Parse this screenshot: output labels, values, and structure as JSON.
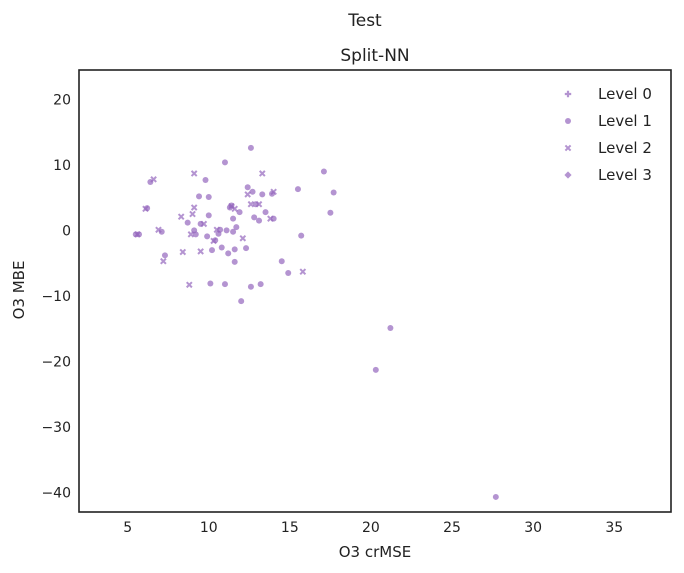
{
  "chart_data": {
    "type": "scatter",
    "suptitle": "Test",
    "title": "Split-NN",
    "xlabel": "O3 crMSE",
    "ylabel": "O3 MBE",
    "xlim": [
      2,
      38.5
    ],
    "ylim": [
      -43,
      24.5
    ],
    "xticks": [
      5,
      10,
      15,
      20,
      25,
      30,
      35
    ],
    "yticks": [
      20,
      10,
      0,
      -10,
      -20,
      -30,
      -40
    ],
    "grid": false,
    "legend_position": "top-right",
    "color": "#9467bd",
    "series": [
      {
        "name": "Level 0",
        "marker": "plus",
        "points": []
      },
      {
        "name": "Level 1",
        "marker": "circle",
        "points": [
          [
            5.5,
            -0.6
          ],
          [
            5.7,
            -0.6
          ],
          [
            6.2,
            3.4
          ],
          [
            6.4,
            7.4
          ],
          [
            7.1,
            -0.2
          ],
          [
            7.3,
            -3.8
          ],
          [
            8.7,
            1.2
          ],
          [
            9.1,
            0.0
          ],
          [
            9.2,
            -0.6
          ],
          [
            9.4,
            5.2
          ],
          [
            9.5,
            1.0
          ],
          [
            9.8,
            7.7
          ],
          [
            9.9,
            -0.9
          ],
          [
            10.0,
            5.1
          ],
          [
            10.0,
            2.3
          ],
          [
            10.1,
            -8.1
          ],
          [
            10.2,
            -3.0
          ],
          [
            10.4,
            -1.5
          ],
          [
            10.6,
            -0.5
          ],
          [
            10.7,
            0.1
          ],
          [
            10.8,
            -2.6
          ],
          [
            11.0,
            10.4
          ],
          [
            11.0,
            -8.2
          ],
          [
            11.1,
            0.0
          ],
          [
            11.2,
            -3.5
          ],
          [
            11.3,
            3.5
          ],
          [
            11.4,
            3.8
          ],
          [
            11.5,
            -0.2
          ],
          [
            11.5,
            1.8
          ],
          [
            11.6,
            -2.9
          ],
          [
            11.6,
            -4.8
          ],
          [
            11.7,
            0.5
          ],
          [
            11.9,
            2.8
          ],
          [
            12.0,
            -10.8
          ],
          [
            12.3,
            -2.7
          ],
          [
            12.4,
            6.6
          ],
          [
            12.6,
            12.6
          ],
          [
            12.6,
            -8.6
          ],
          [
            12.7,
            5.9
          ],
          [
            12.8,
            2.0
          ],
          [
            12.9,
            4.0
          ],
          [
            13.1,
            1.5
          ],
          [
            13.2,
            -8.2
          ],
          [
            13.3,
            5.5
          ],
          [
            13.5,
            2.8
          ],
          [
            13.9,
            5.6
          ],
          [
            14.0,
            1.8
          ],
          [
            14.5,
            -4.7
          ],
          [
            14.9,
            -6.5
          ],
          [
            15.5,
            6.3
          ],
          [
            15.7,
            -0.8
          ],
          [
            17.1,
            9.0
          ],
          [
            17.5,
            2.7
          ],
          [
            17.7,
            5.8
          ],
          [
            20.3,
            -21.3
          ],
          [
            21.2,
            -14.9
          ],
          [
            27.7,
            -40.7
          ]
        ]
      },
      {
        "name": "Level 2",
        "marker": "x",
        "points": [
          [
            5.6,
            -0.6
          ],
          [
            6.1,
            3.3
          ],
          [
            6.6,
            7.8
          ],
          [
            6.9,
            0.1
          ],
          [
            7.2,
            -4.7
          ],
          [
            8.3,
            2.1
          ],
          [
            8.4,
            -3.3
          ],
          [
            8.8,
            -8.3
          ],
          [
            8.9,
            -0.6
          ],
          [
            9.0,
            2.5
          ],
          [
            9.1,
            3.5
          ],
          [
            9.1,
            8.7
          ],
          [
            9.5,
            -3.2
          ],
          [
            9.7,
            1.0
          ],
          [
            10.3,
            -1.6
          ],
          [
            10.5,
            0.1
          ],
          [
            11.4,
            3.7
          ],
          [
            11.6,
            3.3
          ],
          [
            12.1,
            -1.2
          ],
          [
            12.4,
            5.5
          ],
          [
            12.6,
            4.0
          ],
          [
            13.1,
            4.0
          ],
          [
            13.3,
            8.7
          ],
          [
            13.8,
            1.8
          ],
          [
            14.0,
            5.9
          ],
          [
            15.8,
            -6.3
          ]
        ]
      },
      {
        "name": "Level 3",
        "marker": "diamond",
        "points": []
      }
    ]
  }
}
